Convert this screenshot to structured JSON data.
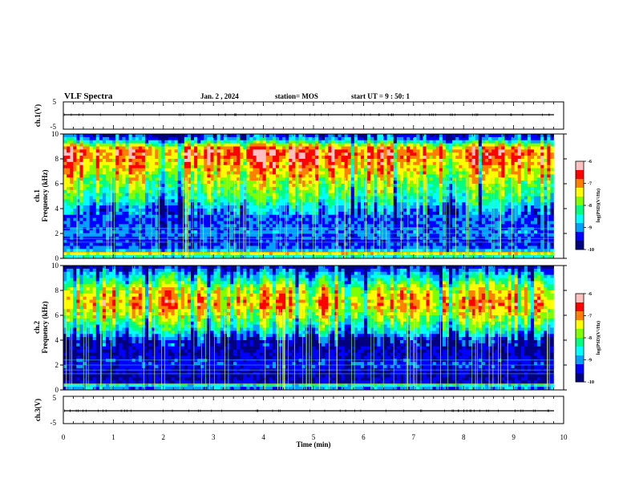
{
  "header": {
    "title": "VLF Spectra",
    "date": "Jan. 2 , 2024",
    "station": "station= MOS",
    "start_ut": "start UT = 9 : 50: 1"
  },
  "chart_data": [
    {
      "type": "line",
      "panel": "ch1-waveform",
      "ylabel": "ch.1(V)",
      "ylim": [
        -5,
        5
      ],
      "yticks": [
        "5",
        "-5"
      ],
      "x": [
        0,
        9.8
      ],
      "values": [
        0,
        0
      ],
      "line_color": "#000000"
    },
    {
      "type": "heatmap",
      "panel": "ch1-spectrogram",
      "ylabel": "ch.1 Frequency (kHz)",
      "ylim": [
        0,
        10
      ],
      "xlim": [
        0,
        10
      ],
      "data_end_min": 9.8,
      "yticks": [
        "0",
        "2",
        "4",
        "6",
        "8",
        "10"
      ],
      "band_profile_freq_khz": [
        0,
        0.3,
        0.6,
        1,
        1.5,
        2,
        3,
        4,
        4.5,
        5,
        6,
        7,
        8,
        8.5,
        9,
        9.5,
        10
      ],
      "band_profile_log_psd": [
        -9.5,
        -7.0,
        -8.8,
        -9.3,
        -9.4,
        -9.0,
        -9.3,
        -9.1,
        -8.6,
        -8.3,
        -7.9,
        -7.4,
        -7.0,
        -6.8,
        -7.3,
        -8.9,
        -9.6
      ],
      "colorbar": {
        "label": "log(PSD)(V²/Hz)",
        "ticks": [
          "-6",
          "-7",
          "-8",
          "-9",
          "-10"
        ],
        "range": [
          -10,
          -6
        ]
      }
    },
    {
      "type": "heatmap",
      "panel": "ch2-spectrogram",
      "ylabel": "ch.2 Frequency (kHz)",
      "ylim": [
        0,
        10
      ],
      "xlim": [
        0,
        10
      ],
      "data_end_min": 9.8,
      "yticks": [
        "0",
        "2",
        "4",
        "6",
        "8",
        "10"
      ],
      "band_profile_freq_khz": [
        0,
        0.3,
        0.6,
        1,
        1.5,
        2,
        3,
        4,
        4.5,
        5,
        6,
        7,
        8,
        8.5,
        9,
        9.5,
        10
      ],
      "band_profile_log_psd": [
        -9.6,
        -8.2,
        -9.5,
        -9.7,
        -9.6,
        -9.3,
        -9.6,
        -9.5,
        -8.8,
        -8.3,
        -7.5,
        -7.0,
        -7.4,
        -7.9,
        -8.4,
        -8.9,
        -9.7
      ],
      "colorbar": {
        "label": "log(PSD)(V²/Hz)",
        "ticks": [
          "-6",
          "-7",
          "-8",
          "-9",
          "-10"
        ],
        "range": [
          -10,
          -6
        ]
      }
    },
    {
      "type": "line",
      "panel": "ch3-waveform",
      "ylabel": "ch.3(V)",
      "ylim": [
        -5,
        5
      ],
      "yticks": [
        "5",
        "-5"
      ],
      "x": [
        0,
        9.8
      ],
      "values": [
        0,
        0
      ],
      "line_color": "#000000"
    }
  ],
  "x_axis": {
    "label": "Time (min)",
    "ticks": [
      "0",
      "1",
      "2",
      "3",
      "4",
      "5",
      "6",
      "7",
      "8",
      "9",
      "10"
    ],
    "range": [
      0,
      10
    ]
  },
  "colormap": [
    "#000080",
    "#0000ff",
    "#00a0ff",
    "#00ffff",
    "#00ff80",
    "#80ff00",
    "#ffff00",
    "#ff8000",
    "#ff0000",
    "#ffc0c0"
  ]
}
